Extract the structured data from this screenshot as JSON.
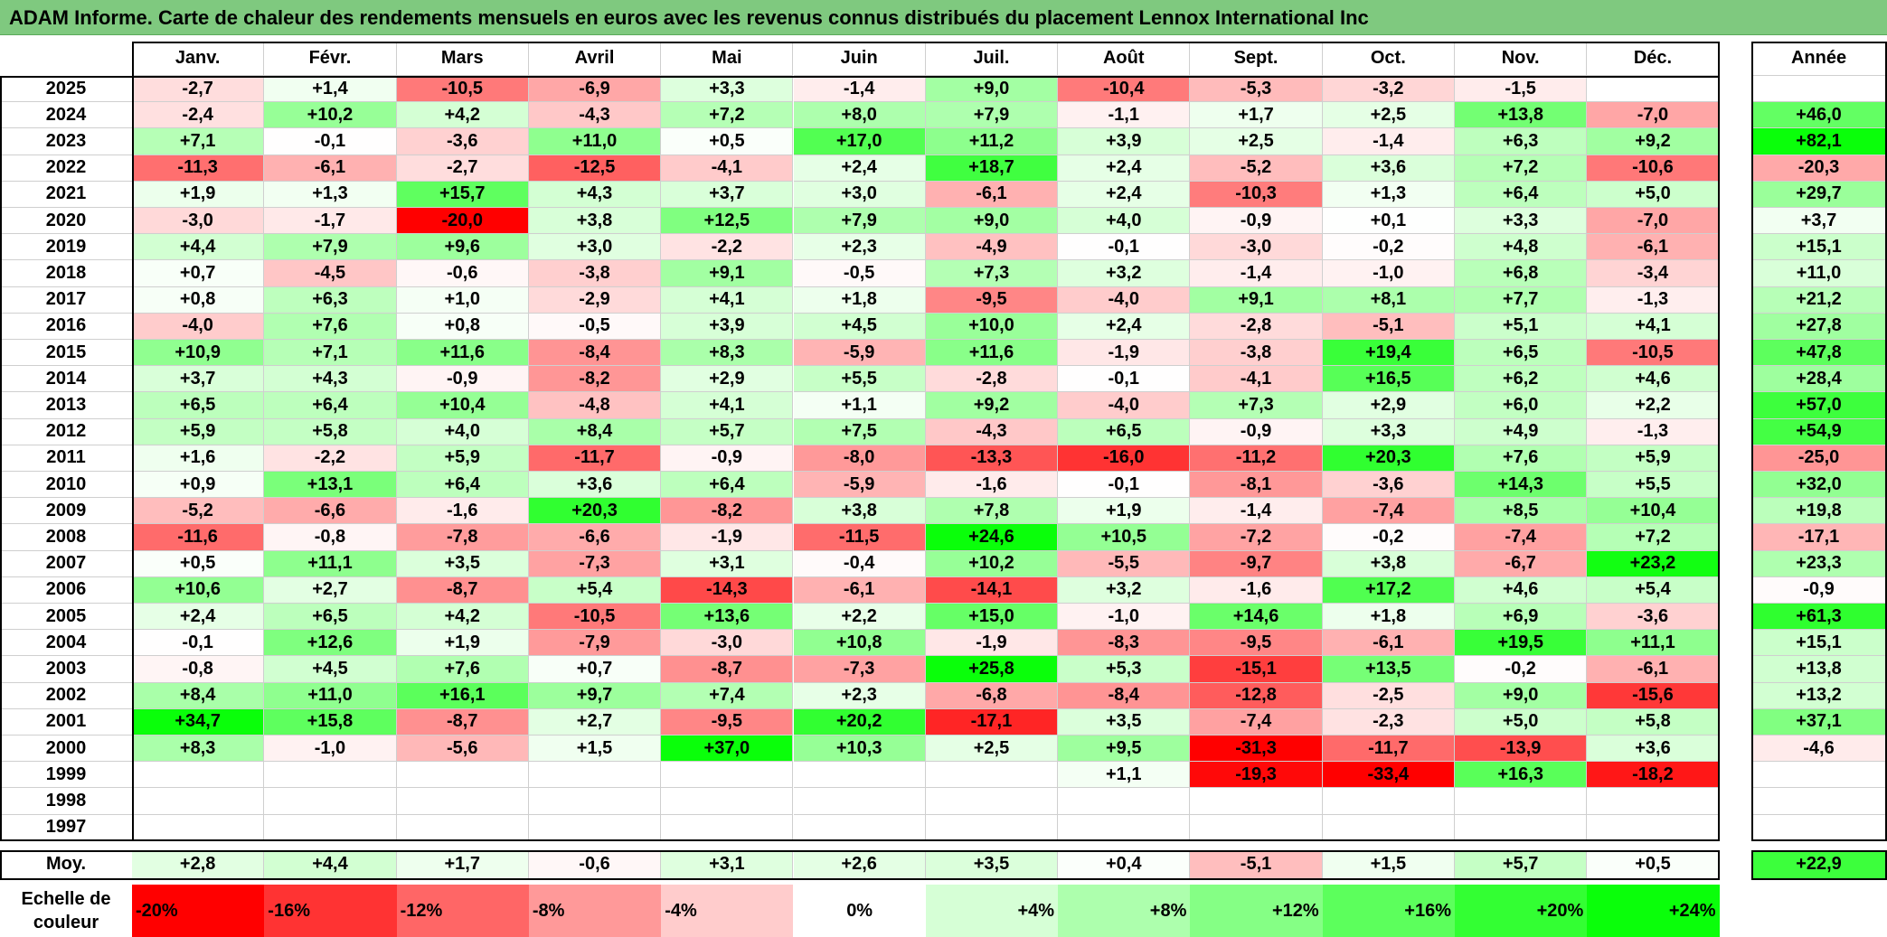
{
  "title": "ADAM Informe. Carte de chaleur des rendements mensuels en euros avec les revenus connus distribués du placement Lennox International Inc",
  "chart_data": {
    "type": "heatmap",
    "title": "ADAM Informe. Carte de chaleur des rendements mensuels en euros avec les revenus connus distribués du placement Lennox International Inc",
    "columns": [
      "Janv.",
      "Févr.",
      "Mars",
      "Avril",
      "Mai",
      "Juin",
      "Juil.",
      "Août",
      "Sept.",
      "Oct.",
      "Nov.",
      "Déc."
    ],
    "annual_header": "Année",
    "rows": [
      {
        "year": "2025",
        "values": [
          "-2,7",
          "+1,4",
          "-10,5",
          "-6,9",
          "+3,3",
          "-1,4",
          "+9,0",
          "-10,4",
          "-5,3",
          "-3,2",
          "-1,5",
          ""
        ],
        "annual": ""
      },
      {
        "year": "2024",
        "values": [
          "-2,4",
          "+10,2",
          "+4,2",
          "-4,3",
          "+7,2",
          "+8,0",
          "+7,9",
          "-1,1",
          "+1,7",
          "+2,5",
          "+13,8",
          "-7,0"
        ],
        "annual": "+46,0"
      },
      {
        "year": "2023",
        "values": [
          "+7,1",
          "-0,1",
          "-3,6",
          "+11,0",
          "+0,5",
          "+17,0",
          "+11,2",
          "+3,9",
          "+2,5",
          "-1,4",
          "+6,3",
          "+9,2"
        ],
        "annual": "+82,1"
      },
      {
        "year": "2022",
        "values": [
          "-11,3",
          "-6,1",
          "-2,7",
          "-12,5",
          "-4,1",
          "+2,4",
          "+18,7",
          "+2,4",
          "-5,2",
          "+3,6",
          "+7,2",
          "-10,6"
        ],
        "annual": "-20,3"
      },
      {
        "year": "2021",
        "values": [
          "+1,9",
          "+1,3",
          "+15,7",
          "+4,3",
          "+3,7",
          "+3,0",
          "-6,1",
          "+2,4",
          "-10,3",
          "+1,3",
          "+6,4",
          "+5,0"
        ],
        "annual": "+29,7"
      },
      {
        "year": "2020",
        "values": [
          "-3,0",
          "-1,7",
          "-20,0",
          "+3,8",
          "+12,5",
          "+7,9",
          "+9,0",
          "+4,0",
          "-0,9",
          "+0,1",
          "+3,3",
          "-7,0"
        ],
        "annual": "+3,7"
      },
      {
        "year": "2019",
        "values": [
          "+4,4",
          "+7,9",
          "+9,6",
          "+3,0",
          "-2,2",
          "+2,3",
          "-4,9",
          "-0,1",
          "-3,0",
          "-0,2",
          "+4,8",
          "-6,1"
        ],
        "annual": "+15,1"
      },
      {
        "year": "2018",
        "values": [
          "+0,7",
          "-4,5",
          "-0,6",
          "-3,8",
          "+9,1",
          "-0,5",
          "+7,3",
          "+3,2",
          "-1,4",
          "-1,0",
          "+6,8",
          "-3,4"
        ],
        "annual": "+11,0"
      },
      {
        "year": "2017",
        "values": [
          "+0,8",
          "+6,3",
          "+1,0",
          "-2,9",
          "+4,1",
          "+1,8",
          "-9,5",
          "-4,0",
          "+9,1",
          "+8,1",
          "+7,7",
          "-1,3"
        ],
        "annual": "+21,2"
      },
      {
        "year": "2016",
        "values": [
          "-4,0",
          "+7,6",
          "+0,8",
          "-0,5",
          "+3,9",
          "+4,5",
          "+10,0",
          "+2,4",
          "-2,8",
          "-5,1",
          "+5,1",
          "+4,1"
        ],
        "annual": "+27,8"
      },
      {
        "year": "2015",
        "values": [
          "+10,9",
          "+7,1",
          "+11,6",
          "-8,4",
          "+8,3",
          "-5,9",
          "+11,6",
          "-1,9",
          "-3,8",
          "+19,4",
          "+6,5",
          "-10,5"
        ],
        "annual": "+47,8"
      },
      {
        "year": "2014",
        "values": [
          "+3,7",
          "+4,3",
          "-0,9",
          "-8,2",
          "+2,9",
          "+5,5",
          "-2,8",
          "-0,1",
          "-4,1",
          "+16,5",
          "+6,2",
          "+4,6"
        ],
        "annual": "+28,4"
      },
      {
        "year": "2013",
        "values": [
          "+6,5",
          "+6,4",
          "+10,4",
          "-4,8",
          "+4,1",
          "+1,1",
          "+9,2",
          "-4,0",
          "+7,3",
          "+2,9",
          "+6,0",
          "+2,2"
        ],
        "annual": "+57,0"
      },
      {
        "year": "2012",
        "values": [
          "+5,9",
          "+5,8",
          "+4,0",
          "+8,4",
          "+5,7",
          "+7,5",
          "-4,3",
          "+6,5",
          "-0,9",
          "+3,3",
          "+4,9",
          "-1,3"
        ],
        "annual": "+54,9"
      },
      {
        "year": "2011",
        "values": [
          "+1,6",
          "-2,2",
          "+5,9",
          "-11,7",
          "-0,9",
          "-8,0",
          "-13,3",
          "-16,0",
          "-11,2",
          "+20,3",
          "+7,6",
          "+5,9"
        ],
        "annual": "-25,0"
      },
      {
        "year": "2010",
        "values": [
          "+0,9",
          "+13,1",
          "+6,4",
          "+3,6",
          "+6,4",
          "-5,9",
          "-1,6",
          "-0,1",
          "-8,1",
          "-3,6",
          "+14,3",
          "+5,5"
        ],
        "annual": "+32,0"
      },
      {
        "year": "2009",
        "values": [
          "-5,2",
          "-6,6",
          "-1,6",
          "+20,3",
          "-8,2",
          "+3,8",
          "+7,8",
          "+1,9",
          "-1,4",
          "-7,4",
          "+8,5",
          "+10,4"
        ],
        "annual": "+19,8"
      },
      {
        "year": "2008",
        "values": [
          "-11,6",
          "-0,8",
          "-7,8",
          "-6,6",
          "-1,9",
          "-11,5",
          "+24,6",
          "+10,5",
          "-7,2",
          "-0,2",
          "-7,4",
          "+7,2"
        ],
        "annual": "-17,1"
      },
      {
        "year": "2007",
        "values": [
          "+0,5",
          "+11,1",
          "+3,5",
          "-7,3",
          "+3,1",
          "-0,4",
          "+10,2",
          "-5,5",
          "-9,7",
          "+3,8",
          "-6,7",
          "+23,2"
        ],
        "annual": "+23,3"
      },
      {
        "year": "2006",
        "values": [
          "+10,6",
          "+2,7",
          "-8,7",
          "+5,4",
          "-14,3",
          "-6,1",
          "-14,1",
          "+3,2",
          "-1,6",
          "+17,2",
          "+4,6",
          "+5,4"
        ],
        "annual": "-0,9"
      },
      {
        "year": "2005",
        "values": [
          "+2,4",
          "+6,5",
          "+4,2",
          "-10,5",
          "+13,6",
          "+2,2",
          "+15,0",
          "-1,0",
          "+14,6",
          "+1,8",
          "+6,9",
          "-3,6"
        ],
        "annual": "+61,3"
      },
      {
        "year": "2004",
        "values": [
          "-0,1",
          "+12,6",
          "+1,9",
          "-7,9",
          "-3,0",
          "+10,8",
          "-1,9",
          "-8,3",
          "-9,5",
          "-6,1",
          "+19,5",
          "+11,1"
        ],
        "annual": "+15,1"
      },
      {
        "year": "2003",
        "values": [
          "-0,8",
          "+4,5",
          "+7,6",
          "+0,7",
          "-8,7",
          "-7,3",
          "+25,8",
          "+5,3",
          "-15,1",
          "+13,5",
          "-0,2",
          "-6,1"
        ],
        "annual": "+13,8"
      },
      {
        "year": "2002",
        "values": [
          "+8,4",
          "+11,0",
          "+16,1",
          "+9,7",
          "+7,4",
          "+2,3",
          "-6,8",
          "-8,4",
          "-12,8",
          "-2,5",
          "+9,0",
          "-15,6"
        ],
        "annual": "+13,2"
      },
      {
        "year": "2001",
        "values": [
          "+34,7",
          "+15,8",
          "-8,7",
          "+2,7",
          "-9,5",
          "+20,2",
          "-17,1",
          "+3,5",
          "-7,4",
          "-2,3",
          "+5,0",
          "+5,8"
        ],
        "annual": "+37,1"
      },
      {
        "year": "2000",
        "values": [
          "+8,3",
          "-1,0",
          "-5,6",
          "+1,5",
          "+37,0",
          "+10,3",
          "+2,5",
          "+9,5",
          "-31,3",
          "-11,7",
          "-13,9",
          "+3,6"
        ],
        "annual": "-4,6"
      },
      {
        "year": "1999",
        "values": [
          "",
          "",
          "",
          "",
          "",
          "",
          "",
          "+1,1",
          "-19,3",
          "-33,4",
          "+16,3",
          "-18,2"
        ],
        "annual": ""
      },
      {
        "year": "1998",
        "values": [
          "",
          "",
          "",
          "",
          "",
          "",
          "",
          "",
          "",
          "",
          "",
          ""
        ],
        "annual": ""
      },
      {
        "year": "1997",
        "values": [
          "",
          "",
          "",
          "",
          "",
          "",
          "",
          "",
          "",
          "",
          "",
          ""
        ],
        "annual": ""
      }
    ],
    "average": {
      "label": "Moy.",
      "values": [
        "+2,8",
        "+4,4",
        "+1,7",
        "-0,6",
        "+3,1",
        "+2,6",
        "+3,5",
        "+0,4",
        "-5,1",
        "+1,5",
        "+5,7",
        "+0,5"
      ],
      "annual": "+22,9"
    },
    "color_scale": {
      "label": "Echelle de couleur",
      "stops": [
        {
          "label": "-20%",
          "value": -20,
          "color": "#ff0000"
        },
        {
          "label": "-16%",
          "value": -16,
          "color": "#ff3333"
        },
        {
          "label": "-12%",
          "value": -12,
          "color": "#ff6666"
        },
        {
          "label": "-8%",
          "value": -8,
          "color": "#ff9999"
        },
        {
          "label": "-4%",
          "value": -4,
          "color": "#ffcccc"
        },
        {
          "label": "0%",
          "value": 0,
          "color": "#ffffff"
        },
        {
          "label": "+4%",
          "value": 4,
          "color": "#d6ffd6"
        },
        {
          "label": "+8%",
          "value": 8,
          "color": "#adffad"
        },
        {
          "label": "+12%",
          "value": 12,
          "color": "#85ff85"
        },
        {
          "label": "+16%",
          "value": 16,
          "color": "#5cff5c"
        },
        {
          "label": "+20%",
          "value": 20,
          "color": "#33ff33"
        },
        {
          "label": "+24%",
          "value": 24,
          "color": "#0aff0a"
        }
      ]
    }
  }
}
